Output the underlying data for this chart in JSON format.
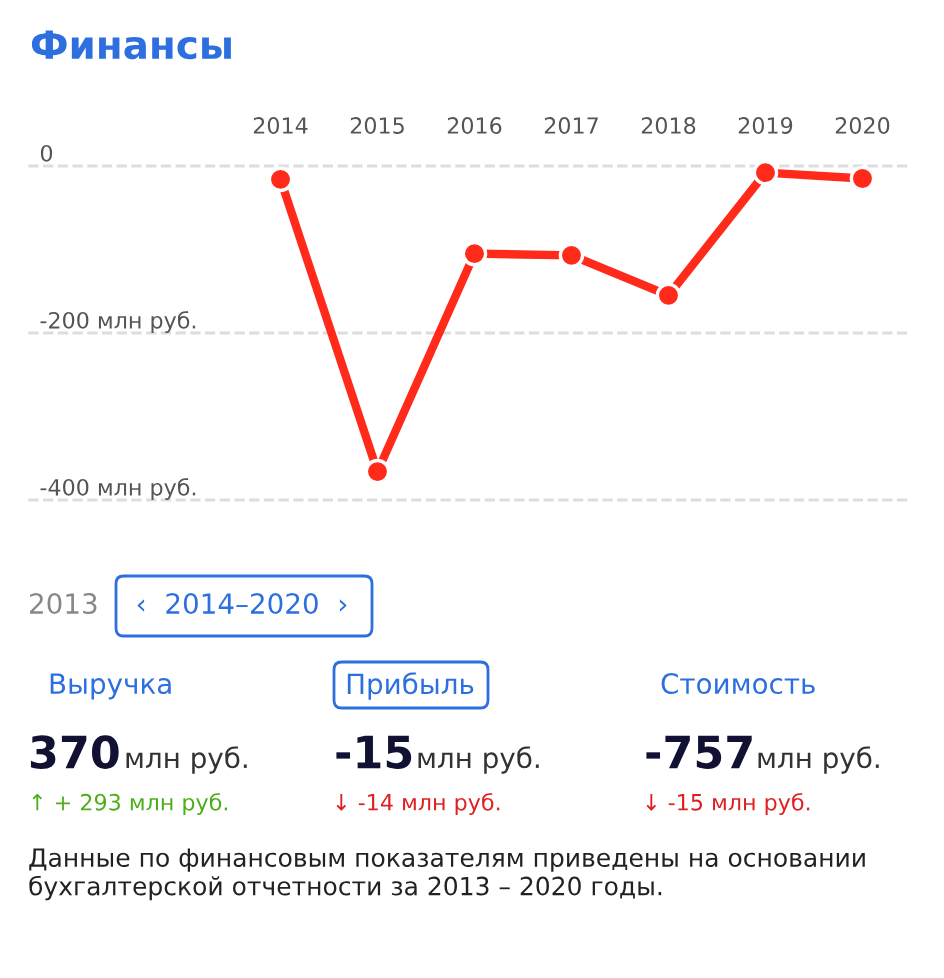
{
  "chart_data": {
    "type": "line",
    "title": "Финансы",
    "categories": [
      "2014",
      "2015",
      "2016",
      "2017",
      "2018",
      "2019",
      "2020"
    ],
    "series": [
      {
        "color": "#ff2a1a",
        "values": [
          -16,
          -366,
          -105,
          -107,
          -155,
          -8,
          -15
        ]
      }
    ],
    "ylim": [
      -400,
      0
    ],
    "yticks": [
      0,
      {
        "value": -200,
        "label": "-200 млн руб."
      },
      {
        "value": -400,
        "label": "-400 млн руб."
      }
    ],
    "grid": "y",
    "marker": "circle",
    "line_style": "solid",
    "annotations": [
      "2013",
      "‹  2014–2020  ›",
      "Выручка",
      "Прибыль",
      "Стоимость",
      "370",
      "млн руб.",
      "-15",
      "млн руб.",
      "-757",
      "млн руб.",
      "↑ + 293 млн руб.",
      "↓ -14 млн руб.",
      "↓ -15 млн руб.",
      "Данные по финансовым показателям приведены на основании бухгалтерской отчетности за 2013 – 2020 годы."
    ]
  }
}
